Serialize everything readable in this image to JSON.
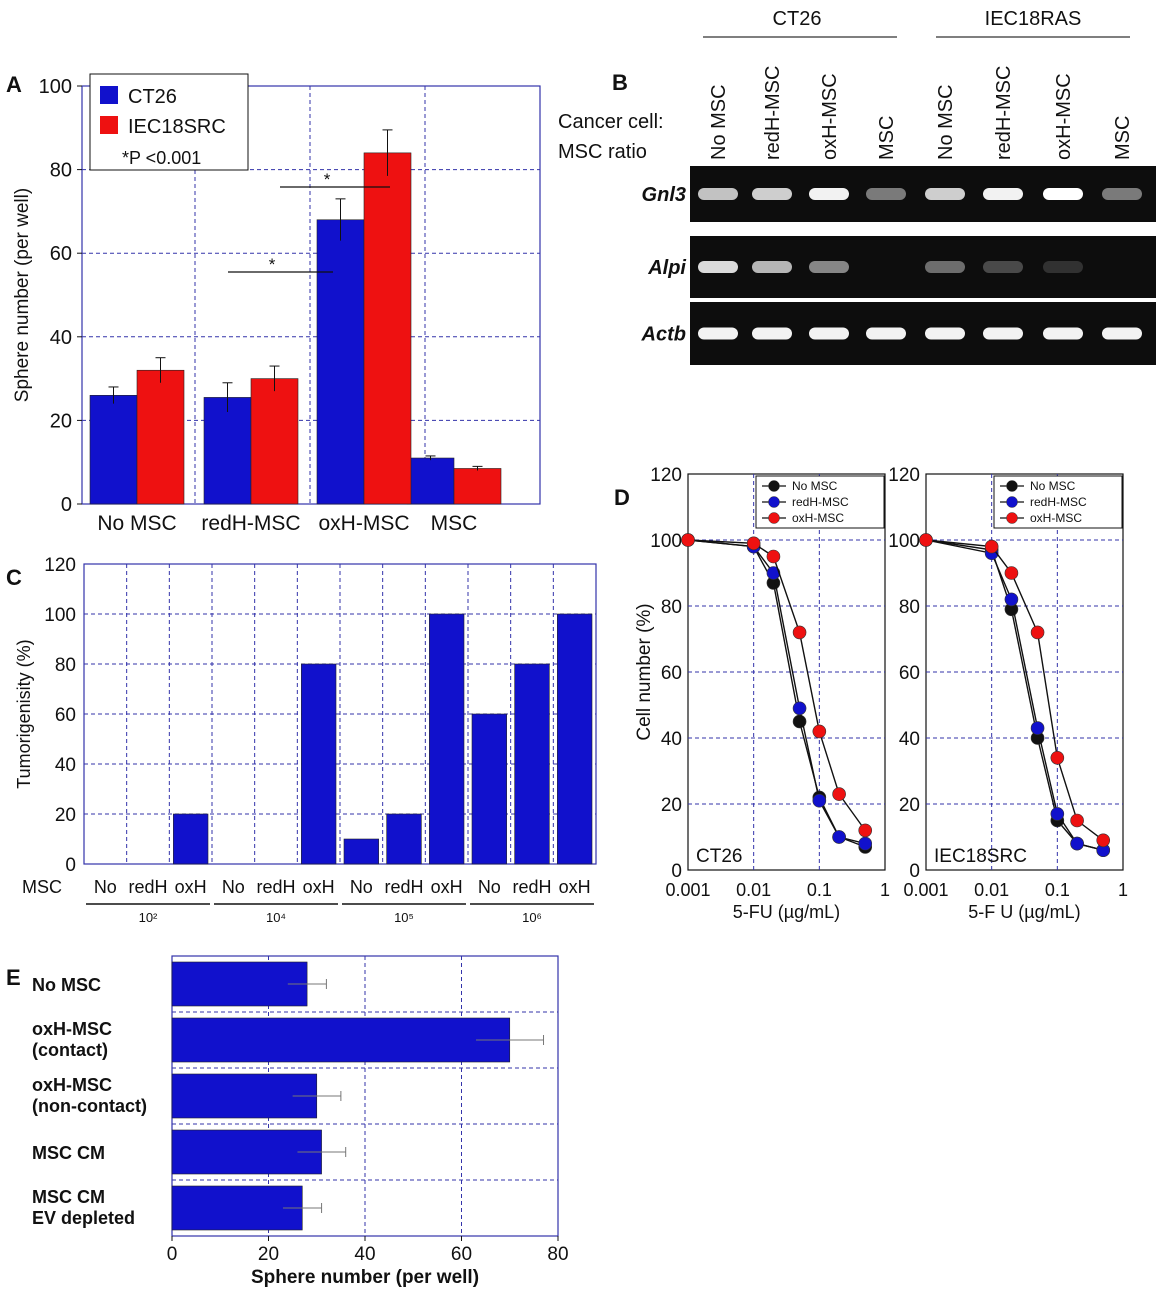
{
  "panels": {
    "A": "A",
    "B": "B",
    "C": "C",
    "D": "D",
    "E": "E"
  },
  "colors": {
    "blue": "#1111cc",
    "red": "#ee1111",
    "black": "#111111",
    "grid": "#3333aa"
  },
  "chart_data": [
    {
      "panel": "A",
      "type": "bar",
      "ylabel": "Sphere number (per well)",
      "ylim": [
        0,
        100
      ],
      "yticks": [
        0,
        20,
        40,
        60,
        80,
        100
      ],
      "categories": [
        "No MSC",
        "redH-MSC",
        "oxH-MSC",
        "MSC"
      ],
      "series": [
        {
          "name": "CT26",
          "values": [
            26,
            25.5,
            68,
            11
          ],
          "errors": [
            2,
            3.5,
            5,
            0.5
          ],
          "color": "#1111cc"
        },
        {
          "name": "IEC18SRC",
          "values": [
            32,
            30,
            84,
            8.5
          ],
          "errors": [
            3,
            3,
            5.5,
            0.5
          ],
          "color": "#ee1111"
        }
      ],
      "annotation": "*P <0.001",
      "significance": [
        "*",
        "*"
      ],
      "grid": true,
      "legend": "top-left"
    },
    {
      "panel": "B",
      "type": "table",
      "groups": [
        "CT26",
        "IEC18RAS"
      ],
      "row_title_1": "Cancer cell:",
      "row_title_2": "MSC ratio",
      "lanes": [
        "No MSC",
        "redH-MSC",
        "oxH-MSC",
        "MSC",
        "No MSC",
        "redH-MSC",
        "oxH-MSC",
        "MSC"
      ],
      "genes": [
        {
          "name": "Gnl3",
          "intensity": [
            0.75,
            0.8,
            0.95,
            0.45,
            0.8,
            0.95,
            1.0,
            0.45
          ]
        },
        {
          "name": "Alpi",
          "intensity": [
            0.85,
            0.7,
            0.5,
            0.0,
            0.4,
            0.25,
            0.15,
            0.0
          ]
        },
        {
          "name": "Actb",
          "intensity": [
            0.95,
            0.95,
            0.95,
            0.95,
            0.95,
            0.95,
            0.95,
            0.95
          ]
        }
      ]
    },
    {
      "panel": "C",
      "type": "bar",
      "ylabel": "Tumorigenisity (%)",
      "ylim": [
        0,
        120
      ],
      "yticks": [
        0,
        20,
        40,
        60,
        80,
        100,
        120
      ],
      "row_label": "MSC",
      "categories": [
        "No",
        "redH",
        "oxH",
        "No",
        "redH",
        "oxH",
        "No",
        "redH",
        "oxH",
        "No",
        "redH",
        "oxH"
      ],
      "groups": [
        "10²",
        "10⁴",
        "10⁵",
        "10⁶"
      ],
      "values": [
        0,
        0,
        20,
        0,
        0,
        80,
        10,
        20,
        100,
        60,
        80,
        100
      ],
      "color": "#1111cc",
      "grid": true
    },
    {
      "panel": "D",
      "type": "line",
      "ylabel": "Cell number (%)",
      "ylim": [
        0,
        120
      ],
      "yticks": [
        0,
        20,
        40,
        60,
        80,
        100,
        120
      ],
      "xscale": "log",
      "xlim": [
        0.001,
        1
      ],
      "xticks": [
        "0.001",
        "0.01",
        "0.1",
        "1"
      ],
      "x": [
        0.001,
        0.01,
        0.02,
        0.05,
        0.1,
        0.2,
        0.5
      ],
      "subplots": [
        {
          "label": "CT26",
          "xlabel": "5-FU (µg/mL)",
          "series": [
            {
              "name": "No MSC",
              "values": [
                100,
                98,
                87,
                45,
                22,
                10,
                7
              ],
              "color": "#111111"
            },
            {
              "name": "redH-MSC",
              "values": [
                100,
                98,
                90,
                49,
                21,
                10,
                8
              ],
              "color": "#1111cc"
            },
            {
              "name": "oxH-MSC",
              "values": [
                100,
                99,
                95,
                72,
                42,
                23,
                12
              ],
              "color": "#ee1111"
            }
          ]
        },
        {
          "label": "IEC18SRC",
          "xlabel": "5-F U (µg/mL)",
          "series": [
            {
              "name": "No MSC",
              "values": [
                100,
                97,
                79,
                40,
                15,
                8,
                6
              ],
              "color": "#111111"
            },
            {
              "name": "redH-MSC",
              "values": [
                100,
                96,
                82,
                43,
                17,
                8,
                6
              ],
              "color": "#1111cc"
            },
            {
              "name": "oxH-MSC",
              "values": [
                100,
                98,
                90,
                72,
                34,
                15,
                9
              ],
              "color": "#ee1111"
            }
          ]
        }
      ],
      "legend_labels": [
        [
          "No MSC",
          "redH-MSC",
          "oxH-MSC"
        ],
        [
          "No MSC",
          "redH-MSC",
          "oxH-MSC"
        ]
      ],
      "grid": true,
      "legend": "top-right"
    },
    {
      "panel": "E",
      "type": "bar",
      "orientation": "horizontal",
      "xlabel": "Sphere number (per well)",
      "xlim": [
        0,
        80
      ],
      "xticks": [
        0,
        20,
        40,
        60,
        80
      ],
      "categories": [
        [
          "No MSC"
        ],
        [
          "oxH-MSC",
          "(contact)"
        ],
        [
          "oxH-MSC",
          "(non-contact)"
        ],
        [
          "MSC CM"
        ],
        [
          "MSC CM",
          "EV depleted"
        ]
      ],
      "values": [
        28,
        70,
        30,
        31,
        27
      ],
      "errors": [
        4,
        7,
        5,
        5,
        4
      ],
      "color": "#1111cc",
      "grid": true
    }
  ]
}
